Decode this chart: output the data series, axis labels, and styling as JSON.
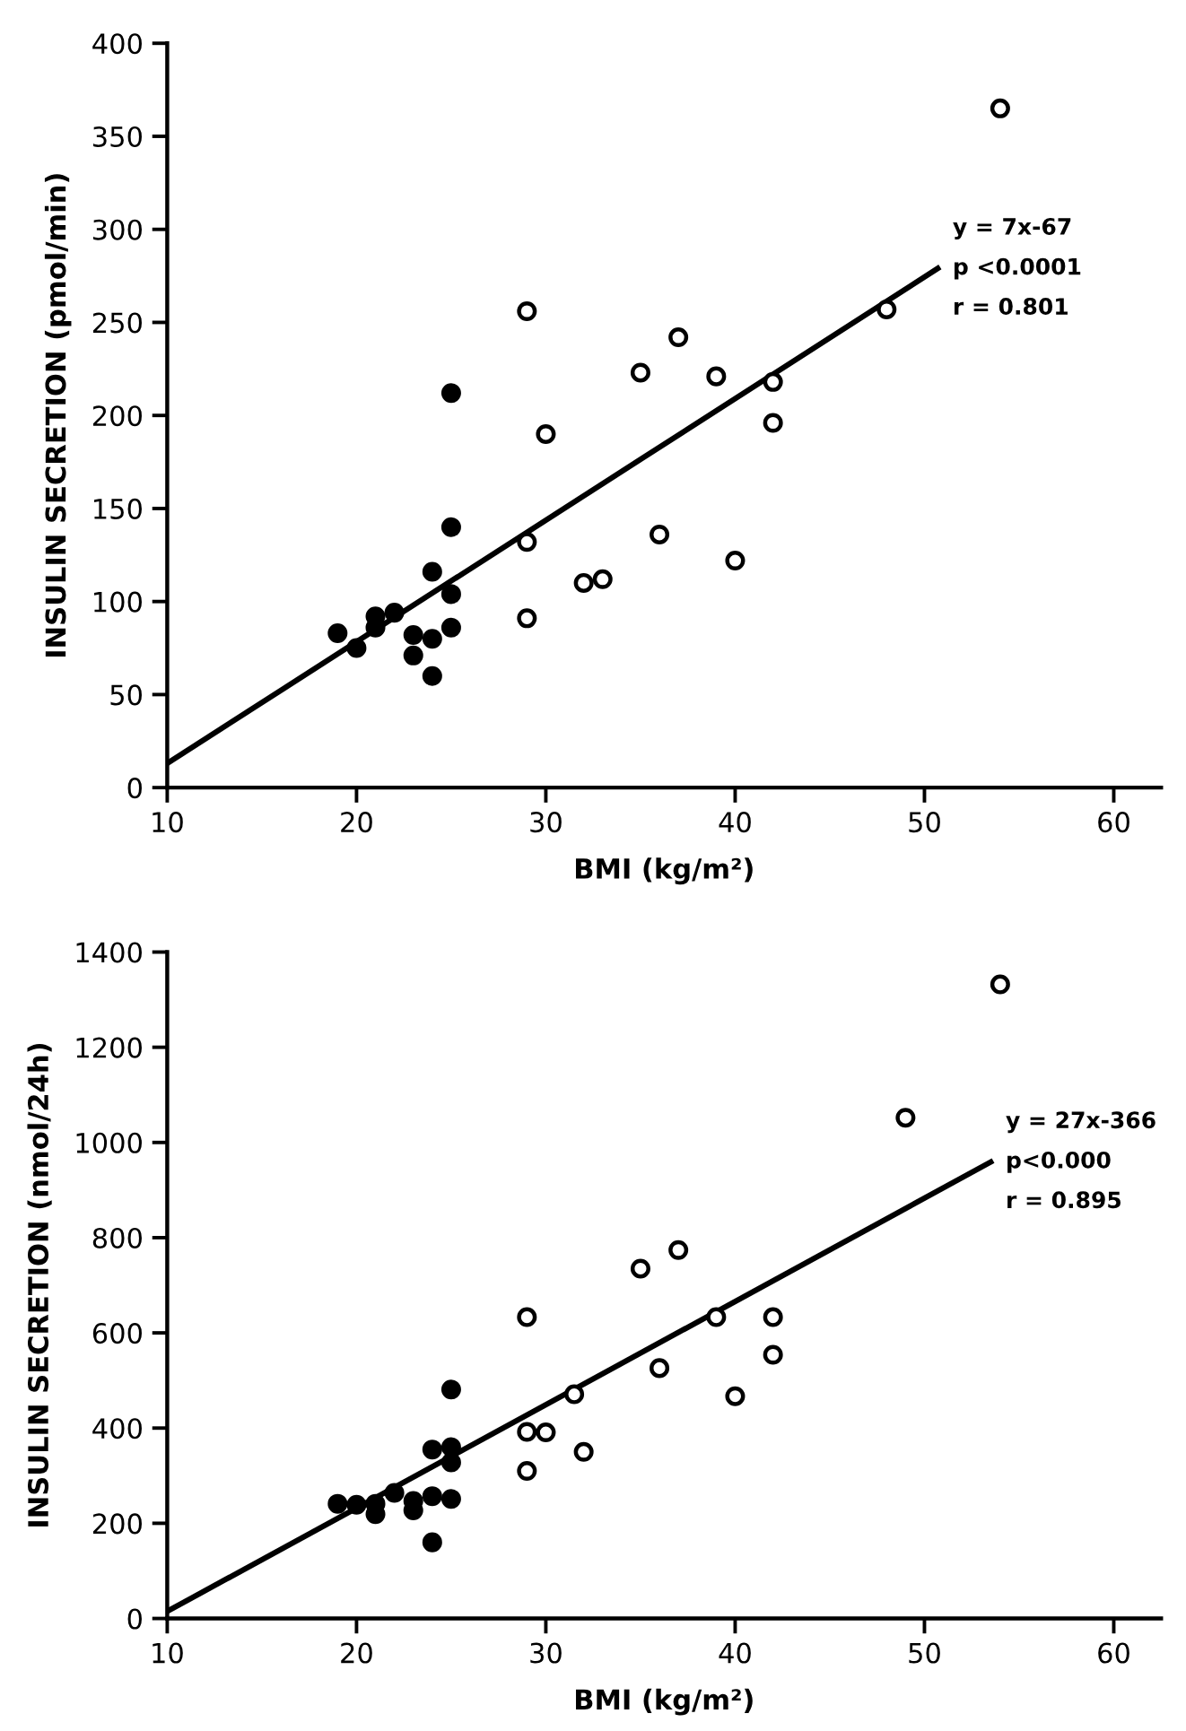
{
  "chart_data": [
    {
      "type": "scatter",
      "xlabel": "BMI (kg/m²)",
      "ylabel": "INSULIN SECRETION (pmol/min)",
      "xlim": [
        10,
        62.5
      ],
      "ylim": [
        0,
        400
      ],
      "xticks": [
        10,
        20,
        30,
        40,
        50,
        60
      ],
      "yticks": [
        0,
        50,
        100,
        150,
        200,
        250,
        300,
        350,
        400
      ],
      "grid": false,
      "legend": false,
      "annotations": [
        "y = 7x-67",
        "p <0.0001",
        "r = 0.801"
      ],
      "series": [
        {
          "marker": "circle",
          "color": "#000000",
          "x": [
            19,
            20,
            21,
            21,
            22,
            23,
            23,
            24,
            24,
            24,
            25,
            25,
            25,
            25
          ],
          "values": [
            83,
            75,
            92,
            86,
            94,
            82,
            71,
            116,
            80,
            60,
            212,
            140,
            104,
            86
          ]
        },
        {
          "marker": "circle",
          "color": "#ffffff",
          "x": [
            29,
            29,
            29,
            30,
            32,
            33,
            35,
            37,
            39,
            36,
            40,
            42,
            42,
            48,
            54
          ],
          "values": [
            256,
            132,
            91,
            190,
            110,
            112,
            223,
            242,
            221,
            136,
            122,
            218,
            196,
            257,
            365
          ]
        },
        {
          "type": "line",
          "color": "#000000",
          "x": [
            10,
            50.7
          ],
          "values": [
            13,
            279
          ]
        }
      ]
    },
    {
      "type": "scatter",
      "xlabel": "BMI (kg/m²)",
      "ylabel": "INSULIN SECRETION (nmol/24h)",
      "xlim": [
        10,
        62.5
      ],
      "ylim": [
        0,
        1400
      ],
      "xticks": [
        10,
        20,
        30,
        40,
        50,
        60
      ],
      "yticks": [
        0,
        200,
        400,
        600,
        800,
        1000,
        1200,
        1400
      ],
      "grid": false,
      "legend": false,
      "annotations": [
        "y = 27x-366",
        "p<0.000",
        "r = 0.895"
      ],
      "series": [
        {
          "marker": "circle",
          "color": "#000000",
          "x": [
            19,
            20,
            21,
            21,
            22,
            23,
            23,
            24,
            24,
            24,
            25,
            25,
            25,
            25
          ],
          "values": [
            241,
            239,
            241,
            219,
            264,
            247,
            227,
            355,
            257,
            160,
            481,
            360,
            328,
            251
          ]
        },
        {
          "marker": "circle",
          "color": "#ffffff",
          "x": [
            29,
            29,
            29,
            30,
            31.5,
            32,
            35,
            37,
            39,
            36,
            40,
            42,
            42,
            49,
            54
          ],
          "values": [
            633,
            392,
            310,
            391,
            471,
            350,
            735,
            774,
            633,
            526,
            467,
            633,
            554,
            1052,
            1332
          ]
        },
        {
          "type": "line",
          "color": "#000000",
          "x": [
            10,
            53.5
          ],
          "values": [
            15,
            959
          ]
        }
      ]
    }
  ]
}
